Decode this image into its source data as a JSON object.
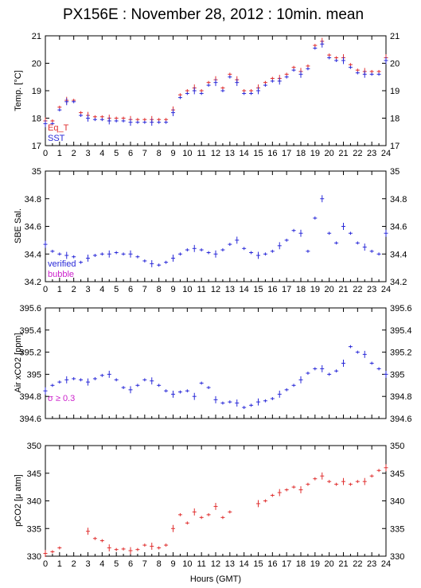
{
  "title": "PX156E : November 28, 2012 : 10min. mean",
  "xlabel": "Hours (GMT)",
  "x_ticks": [
    "0",
    "1",
    "2",
    "3",
    "4",
    "5",
    "6",
    "7",
    "8",
    "9",
    "10",
    "11",
    "12",
    "13",
    "14",
    "15",
    "16",
    "17",
    "18",
    "19",
    "20",
    "21",
    "22",
    "23",
    "24"
  ],
  "colors": {
    "red": "#e03030",
    "blue": "#2a2ad8",
    "magenta": "#cc22cc"
  },
  "chart_data": [
    {
      "type": "scatter",
      "ylabel": "Temp. [°C]",
      "ylim": [
        17,
        21
      ],
      "yticks": [
        "17",
        "18",
        "19",
        "20",
        "21"
      ],
      "x_range": [
        0,
        24
      ],
      "legend": [
        "Eq_T",
        "SST"
      ],
      "legend_position": "bottom-left",
      "series": [
        {
          "name": "Eq_T",
          "color": "#e03030",
          "x": [
            0,
            0.5,
            1,
            1.5,
            2,
            2.5,
            3,
            3.5,
            4,
            4.5,
            5,
            5.5,
            6,
            6.5,
            7,
            7.5,
            8,
            8.5,
            9,
            9.5,
            10,
            10.5,
            11,
            11.5,
            12,
            12.5,
            13,
            13.5,
            14,
            14.5,
            15,
            15.5,
            16,
            16.5,
            17,
            17.5,
            18,
            18.5,
            19,
            19.5,
            20,
            20.5,
            21,
            21.5,
            22,
            22.5,
            23,
            23.5,
            24
          ],
          "y": [
            17.9,
            17.9,
            18.4,
            18.65,
            18.65,
            18.2,
            18.1,
            18.05,
            18.05,
            18.0,
            18.0,
            18.0,
            17.95,
            17.95,
            17.95,
            17.95,
            17.95,
            17.95,
            18.3,
            18.85,
            19.0,
            19.1,
            19.0,
            19.3,
            19.4,
            19.1,
            19.6,
            19.4,
            19.0,
            19.0,
            19.1,
            19.3,
            19.45,
            19.45,
            19.6,
            19.85,
            19.7,
            19.9,
            20.65,
            20.8,
            20.3,
            20.2,
            20.2,
            19.95,
            19.75,
            19.7,
            19.7,
            19.7,
            20.2
          ]
        },
        {
          "name": "SST",
          "color": "#2a2ad8",
          "x": [
            0,
            0.5,
            1,
            1.5,
            2,
            2.5,
            3,
            3.5,
            4,
            4.5,
            5,
            5.5,
            6,
            6.5,
            7,
            7.5,
            8,
            8.5,
            9,
            9.5,
            10,
            10.5,
            11,
            11.5,
            12,
            12.5,
            13,
            13.5,
            14,
            14.5,
            15,
            15.5,
            16,
            16.5,
            17,
            17.5,
            18,
            18.5,
            19,
            19.5,
            20,
            20.5,
            21,
            21.5,
            22,
            22.5,
            23,
            23.5,
            24
          ],
          "y": [
            17.8,
            17.8,
            18.3,
            18.6,
            18.6,
            18.1,
            18.0,
            17.95,
            17.95,
            17.9,
            17.9,
            17.9,
            17.85,
            17.85,
            17.85,
            17.85,
            17.85,
            17.85,
            18.2,
            18.75,
            18.9,
            19.0,
            18.9,
            19.2,
            19.3,
            19.0,
            19.5,
            19.3,
            18.9,
            18.9,
            19.0,
            19.2,
            19.35,
            19.35,
            19.5,
            19.75,
            19.6,
            19.8,
            20.55,
            20.7,
            20.2,
            20.1,
            20.1,
            19.85,
            19.65,
            19.6,
            19.6,
            19.6,
            20.1
          ]
        }
      ]
    },
    {
      "type": "scatter",
      "ylabel": "SBE Sal.",
      "ylim": [
        34.2,
        35
      ],
      "yticks": [
        "34.2",
        "34.4",
        "34.6",
        "34.8",
        "35"
      ],
      "x_range": [
        0,
        24
      ],
      "legend": [
        "verified",
        "bubble"
      ],
      "legend_position": "bottom-left",
      "series": [
        {
          "name": "verified",
          "color": "#2a2ad8",
          "x": [
            0,
            0.5,
            1,
            1.5,
            2,
            2.5,
            3,
            3.5,
            4,
            4.5,
            5,
            5.5,
            6,
            6.5,
            7,
            7.5,
            8,
            8.5,
            9,
            9.5,
            10,
            10.5,
            11,
            11.5,
            12,
            12.5,
            13,
            13.5,
            14,
            14.5,
            15,
            15.5,
            16,
            16.5,
            17,
            17.5,
            18,
            18.5,
            19,
            19.5,
            20,
            20.5,
            21,
            21.5,
            22,
            22.5,
            23,
            23.5,
            24
          ],
          "y": [
            34.47,
            34.42,
            34.4,
            34.39,
            34.38,
            34.34,
            34.37,
            34.39,
            34.4,
            34.4,
            34.41,
            34.4,
            34.4,
            34.38,
            34.35,
            34.33,
            34.32,
            34.34,
            34.37,
            34.4,
            34.43,
            34.44,
            34.43,
            34.41,
            34.4,
            34.43,
            34.47,
            34.5,
            34.44,
            34.41,
            34.39,
            34.4,
            34.42,
            34.46,
            34.5,
            34.57,
            34.55,
            34.42,
            34.66,
            34.8,
            34.55,
            34.48,
            34.6,
            34.55,
            34.48,
            34.45,
            34.42,
            34.4,
            34.55
          ]
        }
      ]
    },
    {
      "type": "scatter",
      "ylabel": "Air xCO2 [ppm]",
      "ylim": [
        394.6,
        395.6
      ],
      "yticks": [
        "394.6",
        "394.8",
        "395",
        "395.2",
        "395.4",
        "395.6"
      ],
      "x_range": [
        0,
        24
      ],
      "legend": [
        "σ ≥ 0.3"
      ],
      "legend_position": "bottom-left",
      "series": [
        {
          "name": "",
          "color": "#2a2ad8",
          "x": [
            0,
            0.5,
            1,
            1.5,
            2,
            2.5,
            3,
            3.5,
            4,
            4.5,
            5,
            5.5,
            6,
            6.5,
            7,
            7.5,
            8,
            8.5,
            9,
            9.5,
            10,
            10.5,
            11,
            11.5,
            12,
            12.5,
            13,
            13.5,
            14,
            14.5,
            15,
            15.5,
            16,
            16.5,
            17,
            17.5,
            18,
            18.5,
            19,
            19.5,
            20,
            20.5,
            21,
            21.5,
            22,
            22.5,
            23,
            23.5,
            24
          ],
          "y": [
            394.85,
            394.9,
            394.93,
            394.95,
            394.96,
            394.95,
            394.93,
            394.96,
            394.99,
            395.0,
            394.95,
            394.88,
            394.86,
            394.9,
            394.95,
            394.94,
            394.9,
            394.85,
            394.82,
            394.84,
            394.85,
            394.8,
            394.92,
            394.88,
            394.77,
            394.74,
            394.75,
            394.74,
            394.7,
            394.72,
            394.75,
            394.76,
            394.78,
            394.82,
            394.86,
            394.9,
            394.95,
            395.01,
            395.05,
            395.05,
            395.0,
            395.03,
            395.1,
            395.25,
            395.2,
            395.18,
            395.1,
            395.05,
            395.0
          ]
        }
      ]
    },
    {
      "type": "scatter",
      "ylabel": "pCO2 [μ atm]",
      "ylim": [
        330,
        350
      ],
      "yticks": [
        "330",
        "335",
        "340",
        "345",
        "350"
      ],
      "x_range": [
        0,
        24
      ],
      "series": [
        {
          "name": "",
          "color": "#e03030",
          "x": [
            0,
            0.5,
            1,
            3,
            3.5,
            4,
            4.5,
            5,
            5.5,
            6,
            6.5,
            7,
            7.5,
            8,
            8.5,
            9,
            9.5,
            10,
            10.5,
            11,
            11.5,
            12,
            12.5,
            13,
            15,
            15.5,
            16,
            16.5,
            17,
            17.5,
            18,
            18.5,
            19,
            19.5,
            20,
            20.5,
            21,
            21.5,
            22,
            22.5,
            23,
            23.5,
            24
          ],
          "y": [
            330.5,
            330.8,
            331.5,
            334.5,
            333.2,
            332.8,
            331.5,
            331.2,
            331.3,
            331.0,
            331.2,
            332.0,
            331.8,
            331.5,
            332.0,
            335.0,
            337.5,
            336.0,
            338.0,
            337.0,
            337.5,
            339.0,
            337.0,
            338.0,
            339.5,
            340.0,
            341.0,
            341.5,
            342.0,
            342.5,
            342.0,
            343.0,
            344.0,
            344.5,
            343.5,
            343.0,
            343.5,
            343.0,
            343.5,
            343.5,
            344.5,
            345.5,
            346.0
          ]
        }
      ]
    }
  ]
}
